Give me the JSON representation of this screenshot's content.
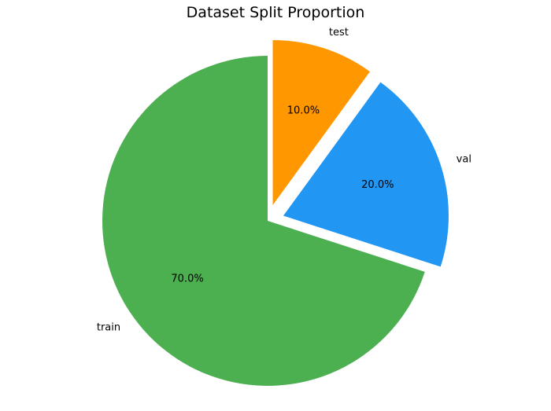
{
  "chart_data": {
    "type": "pie",
    "title": "Dataset Split Proportion",
    "start_angle_deg": 90,
    "direction": "counterclockwise",
    "slices": [
      {
        "label": "train",
        "value": 70.0,
        "pct_label": "70.0%",
        "color": "#4caf50",
        "exploded": false
      },
      {
        "label": "val",
        "value": 20.0,
        "pct_label": "20.0%",
        "color": "#2196f3",
        "exploded": true
      },
      {
        "label": "test",
        "value": 10.0,
        "pct_label": "10.0%",
        "color": "#ff9800",
        "exploded": true
      }
    ],
    "legend": "none"
  }
}
